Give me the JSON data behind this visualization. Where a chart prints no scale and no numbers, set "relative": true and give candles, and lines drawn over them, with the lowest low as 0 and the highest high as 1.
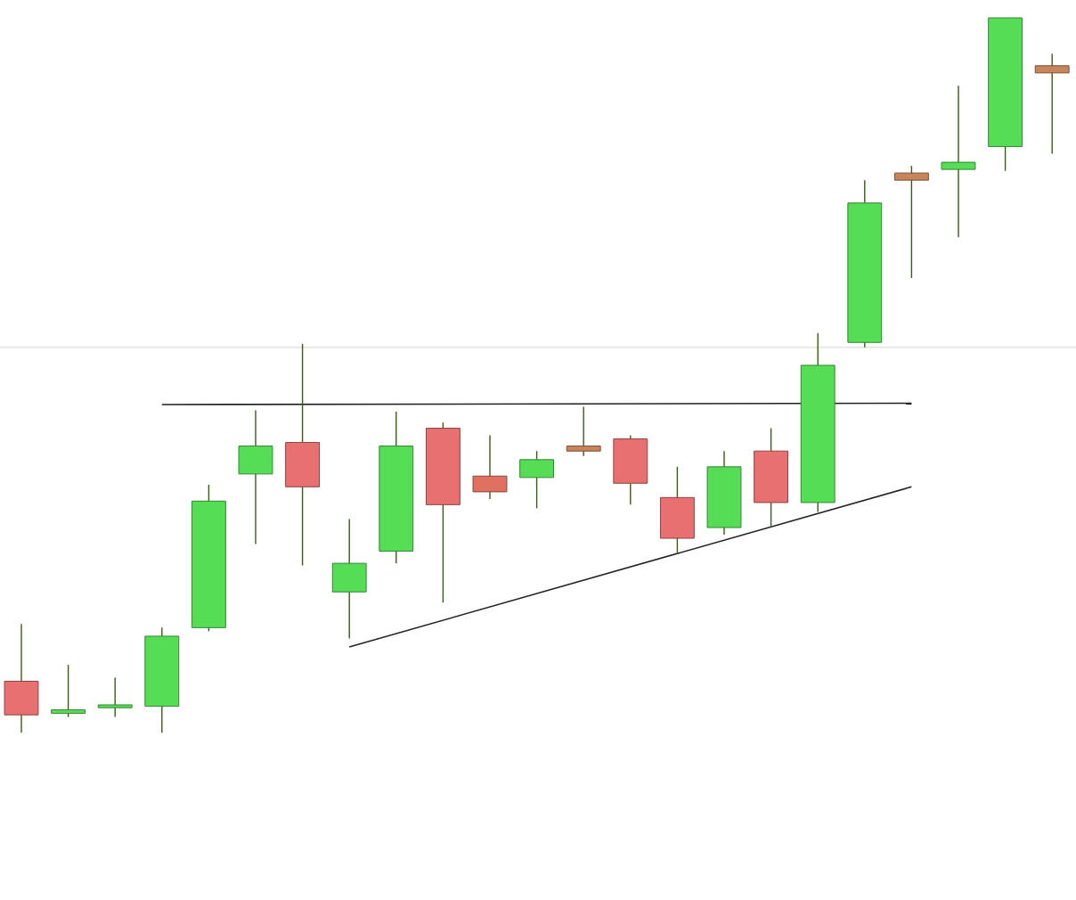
{
  "chart_data": {
    "type": "candlestick",
    "relative": true,
    "categories": [
      null,
      null,
      null,
      null,
      null,
      null,
      null,
      null,
      null,
      null,
      null,
      null,
      null,
      null,
      null,
      null,
      null,
      null,
      null,
      null,
      null,
      null,
      null
    ],
    "ohlc": [
      [
        0.072,
        0.152,
        0,
        0.025
      ],
      [
        0.027,
        0.095,
        0.022,
        0.032
      ],
      [
        0.037,
        0.077,
        0.022,
        0.037
      ],
      [
        0.037,
        0.147,
        0,
        0.135
      ],
      [
        0.147,
        0.347,
        0.142,
        0.324
      ],
      [
        0.362,
        0.451,
        0.264,
        0.401
      ],
      [
        0.406,
        0.544,
        0.234,
        0.344
      ],
      [
        0.197,
        0.299,
        0.132,
        0.237
      ],
      [
        0.254,
        0.449,
        0.237,
        0.401
      ],
      [
        0.426,
        0.434,
        0.182,
        0.319
      ],
      [
        0.359,
        0.416,
        0.327,
        0.337
      ],
      [
        0.357,
        0.394,
        0.314,
        0.382
      ],
      [
        0.401,
        0.456,
        0.387,
        0.394
      ],
      [
        0.411,
        0.416,
        0.319,
        0.349
      ],
      [
        0.329,
        0.372,
        0.252,
        0.272
      ],
      [
        0.287,
        0.394,
        0.277,
        0.372
      ],
      [
        0.394,
        0.426,
        0.289,
        0.322
      ],
      [
        0.322,
        0.559,
        0.309,
        0.514
      ],
      [
        0.546,
        0.773,
        0.539,
        0.741
      ],
      [
        0.783,
        0.793,
        0.636,
        0.773
      ],
      [
        0.788,
        0.905,
        0.693,
        0.798
      ],
      [
        0.82,
        1,
        0.786,
        1
      ],
      [
        0.933,
        0.95,
        0.81,
        0.923
      ]
    ],
    "colors": [
      "#e87070",
      "#55dd55",
      "#55dd55",
      "#55dd55",
      "#55dd55",
      "#55dd55",
      "#e87070",
      "#55dd55",
      "#55dd55",
      "#e87070",
      "#e07060",
      "#55dd55",
      "#c8845a",
      "#e87070",
      "#e87070",
      "#55dd55",
      "#e87070",
      "#55dd55",
      "#55dd55",
      "#c8845a",
      "#55dd55",
      "#55dd55",
      "#c8845a"
    ],
    "series": [
      {
        "type": "line",
        "color": "#222222",
        "values": [
          null,
          null,
          null,
          0.459,
          null,
          null,
          null,
          null,
          null,
          null,
          null,
          null,
          null,
          null,
          null,
          null,
          null,
          null,
          null,
          0.461,
          null,
          null,
          null
        ]
      },
      {
        "type": "line",
        "color": "#222222",
        "values": [
          null,
          null,
          null,
          null,
          null,
          null,
          null,
          0.12,
          null,
          null,
          null,
          null,
          null,
          null,
          null,
          null,
          null,
          null,
          null,
          0.344,
          null,
          null,
          null
        ]
      }
    ],
    "ref_lines": [
      {
        "axis": "y",
        "value": 0.539,
        "color": "#dddddd"
      }
    ]
  }
}
